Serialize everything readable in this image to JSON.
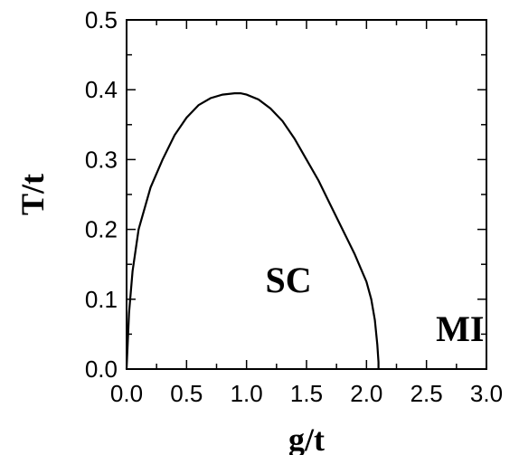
{
  "chart_data": {
    "type": "line",
    "xlabel": "g/t",
    "ylabel": "T/t",
    "xlim": [
      0.0,
      3.0
    ],
    "ylim": [
      0.0,
      0.5
    ],
    "xticks": [
      "0.0",
      "0.5",
      "1.0",
      "1.5",
      "2.0",
      "2.5",
      "3.0"
    ],
    "yticks": [
      "0.0",
      "0.1",
      "0.2",
      "0.3",
      "0.4",
      "0.5"
    ],
    "grid": false,
    "series": [
      {
        "x": [
          0.0,
          0.02,
          0.05,
          0.1,
          0.2,
          0.3,
          0.4,
          0.5,
          0.6,
          0.7,
          0.8,
          0.9,
          0.95,
          1.0,
          1.1,
          1.2,
          1.3,
          1.4,
          1.5,
          1.6,
          1.7,
          1.8,
          1.9,
          1.95,
          2.0,
          2.04,
          2.07,
          2.09,
          2.1,
          2.1
        ],
        "y": [
          0.0,
          0.08,
          0.14,
          0.2,
          0.26,
          0.3,
          0.335,
          0.36,
          0.378,
          0.388,
          0.393,
          0.395,
          0.395,
          0.393,
          0.386,
          0.373,
          0.355,
          0.33,
          0.3,
          0.27,
          0.235,
          0.2,
          0.165,
          0.145,
          0.125,
          0.1,
          0.07,
          0.035,
          0.01,
          0.0
        ],
        "color": "#000000"
      }
    ],
    "annotations": [
      {
        "text": "SC",
        "x": 1.35,
        "y": 0.11
      },
      {
        "text": "MI",
        "x": 2.78,
        "y": 0.04
      }
    ]
  }
}
